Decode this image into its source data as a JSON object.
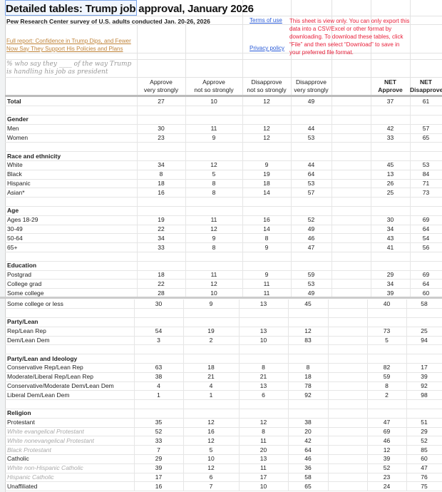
{
  "title": "Detailed tables: Trump job approval, January 2026",
  "subtitle": "Pew Research Center survey of U.S. adults conducted Jan. 20-26, 2026",
  "report_link": "Full report: Confidence in Trump Dips, and Fewer Now Say They Support His Policies and Plans",
  "terms_link": "Terms of use",
  "privacy_link": "Privacy policy",
  "view_only_notice": "This sheet is view only. You can only export this data into a CSV/Excel or other format by downloading. To download these tables, click “File” and then select “Download” to save in your preferred file format.",
  "question_note": "% who say they ____ of the way Trump is handling his job as president",
  "colors": {
    "link": "#2a5bd7",
    "report_link": "#c0843a",
    "notice": "#e8203a"
  },
  "columns": [
    {
      "line1": "Approve",
      "line2": "very strongly"
    },
    {
      "line1": "Approve",
      "line2": "not so strongly"
    },
    {
      "line1": "Disapprove",
      "line2": "not so strongly"
    },
    {
      "line1": "Disapprove",
      "line2": "very strongly"
    },
    {
      "line1": "NET",
      "line2": "Approve"
    },
    {
      "line1": "NET",
      "line2": "Disapprove"
    }
  ],
  "top_rows": [
    {
      "type": "total",
      "label": "Total",
      "values": [
        27,
        10,
        12,
        49,
        37,
        61
      ]
    },
    {
      "type": "blank"
    },
    {
      "type": "header",
      "label": "Gender"
    },
    {
      "type": "row",
      "label": "Men",
      "values": [
        30,
        11,
        12,
        44,
        42,
        57
      ]
    },
    {
      "type": "row",
      "label": "Women",
      "values": [
        23,
        9,
        12,
        53,
        33,
        65
      ]
    },
    {
      "type": "blank"
    },
    {
      "type": "header",
      "label": "Race and ethnicity"
    },
    {
      "type": "row",
      "label": "White",
      "values": [
        34,
        12,
        9,
        44,
        45,
        53
      ]
    },
    {
      "type": "row",
      "label": "Black",
      "values": [
        8,
        5,
        19,
        64,
        13,
        84
      ]
    },
    {
      "type": "row",
      "label": "Hispanic",
      "values": [
        18,
        8,
        18,
        53,
        26,
        71
      ]
    },
    {
      "type": "row",
      "label": "Asian*",
      "values": [
        16,
        8,
        14,
        57,
        25,
        73
      ]
    },
    {
      "type": "blank"
    },
    {
      "type": "header",
      "label": "Age"
    },
    {
      "type": "row",
      "label": "Ages 18-29",
      "values": [
        19,
        11,
        16,
        52,
        30,
        69
      ]
    },
    {
      "type": "row",
      "label": "30-49",
      "values": [
        22,
        12,
        14,
        49,
        34,
        64
      ]
    },
    {
      "type": "row",
      "label": "50-64",
      "values": [
        34,
        9,
        8,
        46,
        43,
        54
      ]
    },
    {
      "type": "row",
      "label": "65+",
      "values": [
        33,
        8,
        9,
        47,
        41,
        56
      ]
    },
    {
      "type": "blank"
    },
    {
      "type": "header",
      "label": "Education"
    },
    {
      "type": "row",
      "label": "Postgrad",
      "values": [
        18,
        11,
        9,
        59,
        29,
        69
      ]
    },
    {
      "type": "row",
      "label": "College grad",
      "values": [
        22,
        12,
        11,
        53,
        34,
        64
      ]
    },
    {
      "type": "row",
      "label": "Some college",
      "values": [
        28,
        10,
        11,
        49,
        39,
        60
      ]
    }
  ],
  "bottom_rows": [
    {
      "type": "row",
      "label": "Some college or less",
      "values": [
        30,
        9,
        13,
        45,
        40,
        58
      ]
    },
    {
      "type": "blank"
    },
    {
      "type": "header",
      "label": "Party/Lean"
    },
    {
      "type": "row",
      "label": "Rep/Lean Rep",
      "values": [
        54,
        19,
        13,
        12,
        73,
        25
      ]
    },
    {
      "type": "row",
      "label": "Dem/Lean Dem",
      "values": [
        3,
        2,
        10,
        83,
        5,
        94
      ]
    },
    {
      "type": "blank"
    },
    {
      "type": "header",
      "label": "Party/Lean and Ideology"
    },
    {
      "type": "row",
      "label": "Conservative Rep/Lean Rep",
      "values": [
        63,
        18,
        8,
        8,
        82,
        17
      ]
    },
    {
      "type": "row",
      "label": "Moderate/Liberal Rep/Lean Rep",
      "values": [
        38,
        21,
        21,
        18,
        59,
        39
      ]
    },
    {
      "type": "row",
      "label": "Conservative/Moderate Dem/Lean Dem",
      "values": [
        4,
        4,
        13,
        78,
        8,
        92
      ]
    },
    {
      "type": "row",
      "label": "Liberal Dem/Lean Dem",
      "values": [
        1,
        1,
        6,
        92,
        2,
        98
      ]
    },
    {
      "type": "blank"
    },
    {
      "type": "header",
      "label": "Religion"
    },
    {
      "type": "row",
      "label": "Protestant",
      "values": [
        35,
        12,
        12,
        38,
        47,
        51
      ]
    },
    {
      "type": "subrow",
      "label": "White evangelical Protestant",
      "values": [
        52,
        16,
        8,
        20,
        69,
        29
      ]
    },
    {
      "type": "subrow",
      "label": "White nonevangelical Protestant",
      "values": [
        33,
        12,
        11,
        42,
        46,
        52
      ]
    },
    {
      "type": "subrow",
      "label": "Black Protestant",
      "values": [
        7,
        5,
        20,
        64,
        12,
        85
      ]
    },
    {
      "type": "row",
      "label": "Catholic",
      "values": [
        29,
        10,
        13,
        46,
        39,
        60
      ]
    },
    {
      "type": "subrow",
      "label": "White non-Hispanic Catholic",
      "values": [
        39,
        12,
        11,
        36,
        52,
        47
      ]
    },
    {
      "type": "subrow",
      "label": "Hispanic Catholic",
      "values": [
        17,
        6,
        17,
        58,
        23,
        76
      ]
    },
    {
      "type": "row",
      "label": "Unaffiliated",
      "values": [
        16,
        7,
        10,
        65,
        24,
        75
      ]
    }
  ]
}
